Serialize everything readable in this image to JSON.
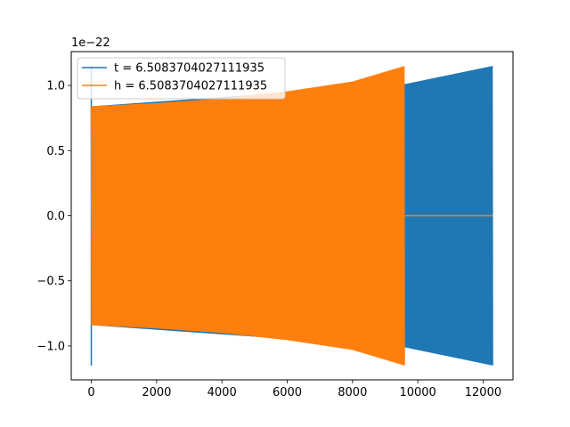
{
  "chart_data": {
    "type": "line",
    "title": "",
    "xlabel": "",
    "ylabel": "",
    "y_offset_label": "1e−22",
    "x_ticks": [
      0,
      2000,
      4000,
      6000,
      8000,
      10000,
      12000
    ],
    "y_ticks": [
      -1.0,
      -0.5,
      0.0,
      0.5,
      1.0
    ],
    "x_tick_labels": [
      "0",
      "2000",
      "4000",
      "6000",
      "8000",
      "10000",
      "12000"
    ],
    "y_tick_labels": [
      "−1.0",
      "−0.5",
      "0.0",
      "0.5",
      "1.0"
    ],
    "xlim": [
      -615,
      12915
    ],
    "ylim": [
      -1.26,
      1.26
    ],
    "grid": false,
    "legend_position": "top-left",
    "series": [
      {
        "name": "t = 6.5083704027111935",
        "color": "#1f77b4",
        "x_range": [
          0,
          12300
        ],
        "envelope": {
          "x": [
            0,
            9600,
            12300
          ],
          "amplitude": [
            0.84,
            1.01,
            1.15
          ]
        },
        "initial_spike": 1.15
      },
      {
        "name": "h = 6.5083704027111935",
        "color": "#ff7f0e",
        "x_range": [
          0,
          9600
        ],
        "envelope": {
          "x": [
            0,
            2000,
            4000,
            6000,
            8000,
            9600
          ],
          "amplitude": [
            0.84,
            0.865,
            0.9,
            0.955,
            1.03,
            1.15
          ]
        },
        "flat_after": [
          9600,
          12300
        ],
        "flat_value": 0.0
      }
    ]
  }
}
